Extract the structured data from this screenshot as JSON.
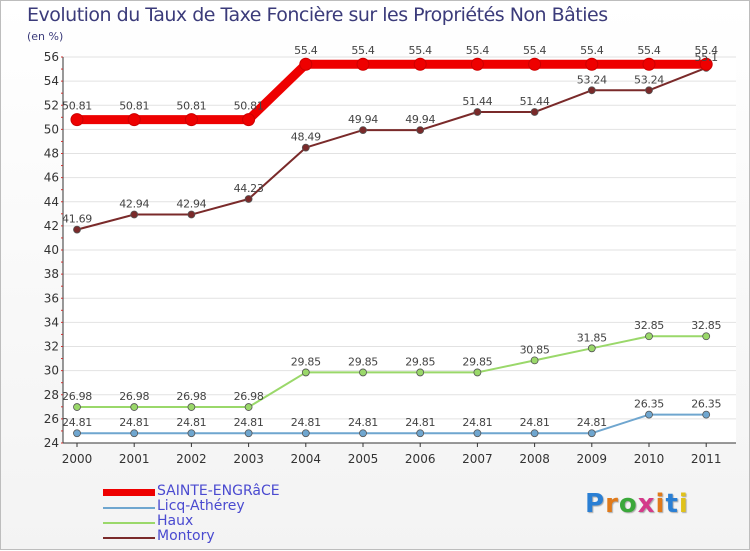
{
  "title": "Evolution du Taux de Taxe Foncière sur les Propriétés Non Bâties",
  "unit": "(en %)",
  "logo": {
    "text": "Proxiti"
  },
  "chart_data": {
    "type": "line",
    "title": "Evolution du Taux de Taxe Foncière sur les Propriétés Non Bâties",
    "ylabel": "(en %)",
    "xlabel": "",
    "x": [
      "2000",
      "2001",
      "2002",
      "2003",
      "2004",
      "2005",
      "2006",
      "2007",
      "2008",
      "2009",
      "2010",
      "2011"
    ],
    "ylim": [
      24,
      56
    ],
    "yticks": [
      24,
      26,
      28,
      30,
      32,
      34,
      36,
      38,
      40,
      42,
      44,
      46,
      48,
      50,
      52,
      54,
      56
    ],
    "legend_position": "bottom-left",
    "series": [
      {
        "name": "SAINTE-ENGRâCE",
        "color": "#ee0000",
        "values": [
          50.81,
          50.81,
          50.81,
          50.81,
          55.4,
          55.4,
          55.4,
          55.4,
          55.4,
          55.4,
          55.4,
          55.4
        ],
        "labels": [
          "50.81",
          "50.81",
          "50.81",
          "50.81",
          "55.4",
          "55.4",
          "55.4",
          "55.4",
          "55.4",
          "55.4",
          "55.4",
          "55.4"
        ]
      },
      {
        "name": "Licq-Athérey",
        "color": "#6fa6cf",
        "values": [
          24.81,
          24.81,
          24.81,
          24.81,
          24.81,
          24.81,
          24.81,
          24.81,
          24.81,
          24.81,
          26.35,
          26.35
        ],
        "labels": [
          "24.81",
          "24.81",
          "24.81",
          "24.81",
          "24.81",
          "24.81",
          "24.81",
          "24.81",
          "24.81",
          "24.81",
          "26.35",
          "26.35"
        ]
      },
      {
        "name": "Haux",
        "color": "#9ad86a",
        "values": [
          26.98,
          26.98,
          26.98,
          26.98,
          29.85,
          29.85,
          29.85,
          29.85,
          30.85,
          31.85,
          32.85,
          32.85
        ],
        "labels": [
          "26.98",
          "26.98",
          "26.98",
          "26.98",
          "29.85",
          "29.85",
          "29.85",
          "29.85",
          "30.85",
          "31.85",
          "32.85",
          "32.85"
        ]
      },
      {
        "name": "Montory",
        "color": "#7a2a2a",
        "values": [
          41.69,
          42.94,
          42.94,
          44.23,
          48.49,
          49.94,
          49.94,
          51.44,
          51.44,
          53.24,
          53.24,
          55.1
        ],
        "labels": [
          "41.69",
          "42.94",
          "42.94",
          "44.23",
          "48.49",
          "49.94",
          "49.94",
          "51.44",
          "51.44",
          "53.24",
          "53.24",
          "55.1"
        ]
      }
    ]
  }
}
